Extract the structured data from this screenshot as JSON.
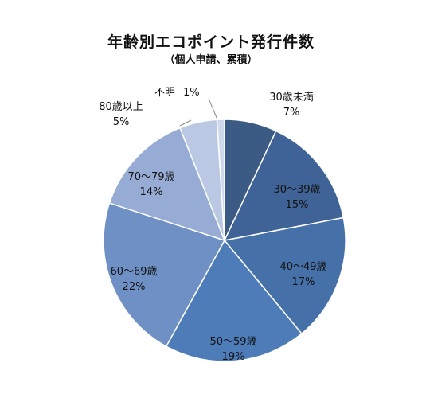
{
  "chart_data": {
    "type": "pie",
    "title": "年齢別エコポイント発行件数",
    "subtitle": "（個人申請、累積）",
    "start_angle_deg": 0,
    "direction": "clockwise",
    "slices": [
      {
        "label": "30歳未満",
        "value": 7,
        "value_label": "7%",
        "color": "#3b5a84"
      },
      {
        "label": "30～39歳",
        "value": 15,
        "value_label": "15%",
        "color": "#3f6396"
      },
      {
        "label": "40～49歳",
        "value": 17,
        "value_label": "17%",
        "color": "#4570a8"
      },
      {
        "label": "50～59歳",
        "value": 19,
        "value_label": "19%",
        "color": "#4d7cb8"
      },
      {
        "label": "60～69歳",
        "value": 22,
        "value_label": "22%",
        "color": "#6f90c4"
      },
      {
        "label": "70～79歳",
        "value": 14,
        "value_label": "14%",
        "color": "#97acd4"
      },
      {
        "label": "80歳以上",
        "value": 5,
        "value_label": "5%",
        "color": "#bac8e3"
      },
      {
        "label": "不明",
        "value": 1,
        "value_label": "1%",
        "color": "#cfd9ec"
      }
    ]
  }
}
